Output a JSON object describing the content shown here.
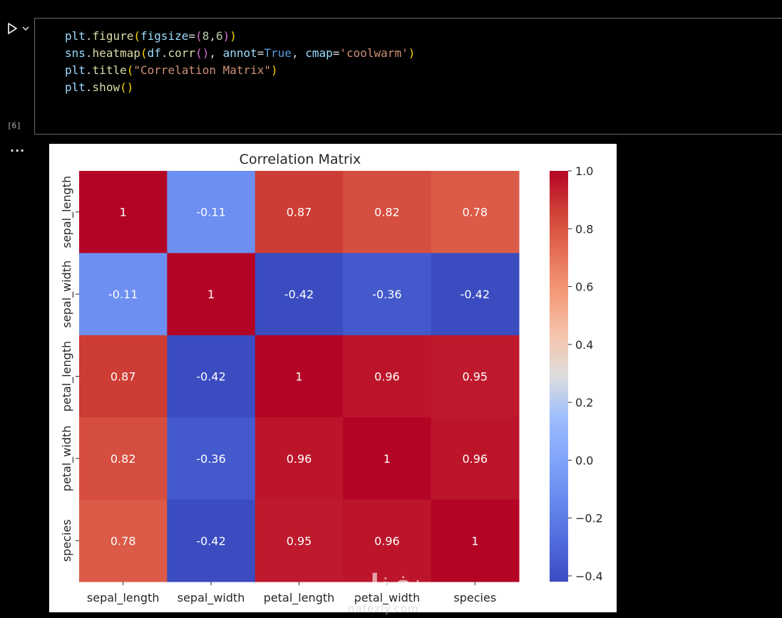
{
  "cell": {
    "execution_count": "[6]",
    "run_icon": "play-icon",
    "chevron_icon": "chevron-down-icon",
    "code_lines": [
      [
        {
          "t": "plt",
          "c": "t-id"
        },
        {
          "t": ".",
          "c": "t-p"
        },
        {
          "t": "figure",
          "c": "t-fn"
        },
        {
          "t": "(",
          "c": "t-b1"
        },
        {
          "t": "figsize",
          "c": "t-id"
        },
        {
          "t": "=",
          "c": "t-op"
        },
        {
          "t": "(",
          "c": "t-b2"
        },
        {
          "t": "8",
          "c": "t-num"
        },
        {
          "t": ",",
          "c": "t-p"
        },
        {
          "t": "6",
          "c": "t-num"
        },
        {
          "t": ")",
          "c": "t-b2"
        },
        {
          "t": ")",
          "c": "t-b1"
        }
      ],
      [
        {
          "t": "sns",
          "c": "t-id"
        },
        {
          "t": ".",
          "c": "t-p"
        },
        {
          "t": "heatmap",
          "c": "t-fn"
        },
        {
          "t": "(",
          "c": "t-b1"
        },
        {
          "t": "df",
          "c": "t-id"
        },
        {
          "t": ".",
          "c": "t-p"
        },
        {
          "t": "corr",
          "c": "t-fn"
        },
        {
          "t": "()",
          "c": "t-b2"
        },
        {
          "t": ", ",
          "c": "t-p"
        },
        {
          "t": "annot",
          "c": "t-id"
        },
        {
          "t": "=",
          "c": "t-op"
        },
        {
          "t": "True",
          "c": "t-kw"
        },
        {
          "t": ", ",
          "c": "t-p"
        },
        {
          "t": "cmap",
          "c": "t-id"
        },
        {
          "t": "=",
          "c": "t-op"
        },
        {
          "t": "'coolwarm'",
          "c": "t-str"
        },
        {
          "t": ")",
          "c": "t-b1"
        }
      ],
      [
        {
          "t": "plt",
          "c": "t-id"
        },
        {
          "t": ".",
          "c": "t-p"
        },
        {
          "t": "title",
          "c": "t-fn"
        },
        {
          "t": "(",
          "c": "t-b1"
        },
        {
          "t": "\"Correlation Matrix\"",
          "c": "t-str"
        },
        {
          "t": ")",
          "c": "t-b1"
        }
      ],
      [
        {
          "t": "plt",
          "c": "t-id"
        },
        {
          "t": ".",
          "c": "t-p"
        },
        {
          "t": "show",
          "c": "t-fn"
        },
        {
          "t": "()",
          "c": "t-b1"
        }
      ]
    ]
  },
  "output": {
    "toggle_label": "..."
  },
  "watermark": {
    "logo_text": "نفذلي",
    "url_text": "nafezly.com"
  },
  "chart_data": {
    "type": "heatmap",
    "title": "Correlation Matrix",
    "rows": [
      "sepal_length",
      "sepal_width",
      "petal_length",
      "petal_width",
      "species"
    ],
    "columns": [
      "sepal_length",
      "sepal_width",
      "petal_length",
      "petal_width",
      "species"
    ],
    "values": [
      [
        1,
        -0.11,
        0.87,
        0.82,
        0.78
      ],
      [
        -0.11,
        1,
        -0.42,
        -0.36,
        -0.42
      ],
      [
        0.87,
        -0.42,
        1,
        0.96,
        0.95
      ],
      [
        0.82,
        -0.36,
        0.96,
        1,
        0.96
      ],
      [
        0.78,
        -0.42,
        0.95,
        0.96,
        1
      ]
    ],
    "annotations": [
      [
        "1",
        "-0.11",
        "0.87",
        "0.82",
        "0.78"
      ],
      [
        "-0.11",
        "1",
        "-0.42",
        "-0.36",
        "-0.42"
      ],
      [
        "0.87",
        "-0.42",
        "1",
        "0.96",
        "0.95"
      ],
      [
        "0.82",
        "-0.36",
        "0.96",
        "1",
        "0.96"
      ],
      [
        "0.78",
        "-0.42",
        "0.95",
        "0.96",
        "1"
      ]
    ],
    "colormap": "coolwarm",
    "vmin": -0.42,
    "vmax": 1.0,
    "colorbar_ticks": [
      "1.0",
      "0.8",
      "0.6",
      "0.4",
      "0.2",
      "0.0",
      "−0.2",
      "−0.4"
    ],
    "colorbar_tick_values": [
      1.0,
      0.8,
      0.6,
      0.4,
      0.2,
      0.0,
      -0.2,
      -0.4
    ],
    "grid": false,
    "colorbar_position": "right"
  }
}
